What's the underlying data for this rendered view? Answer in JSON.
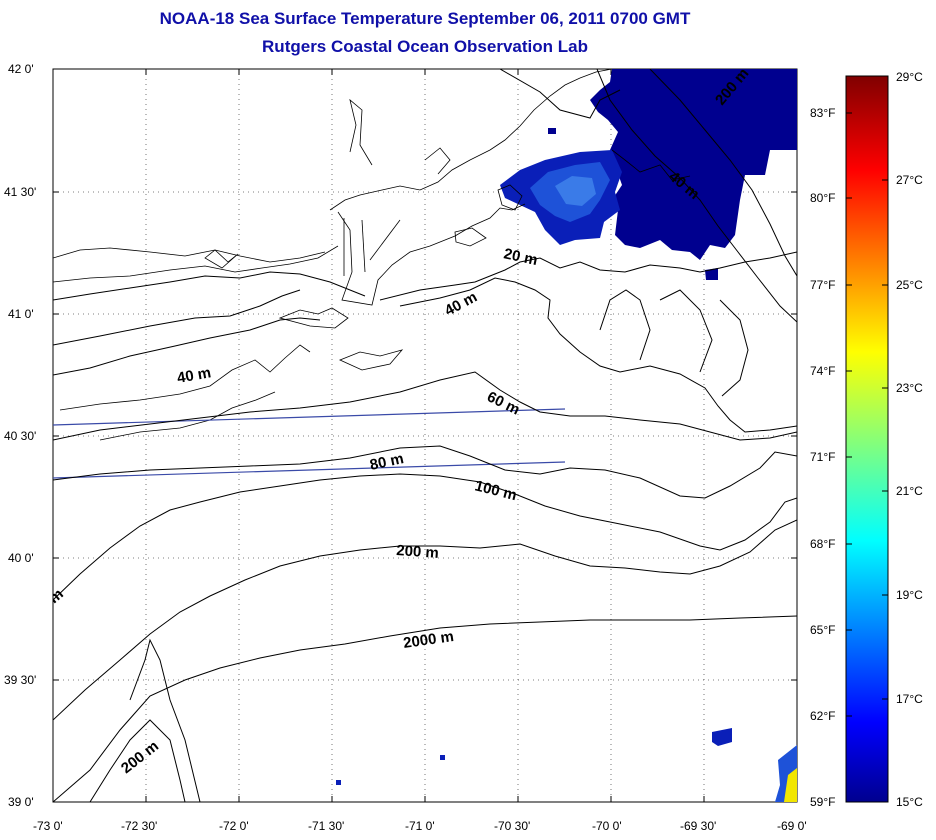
{
  "header": {
    "title_line1": "NOAA-18 Sea Surface Temperature September 06, 2011 0700 GMT",
    "title_line2": "Rutgers Coastal Ocean Observation Lab"
  },
  "map": {
    "lon_ticks": [
      "-73 0'",
      "-72 30'",
      "-72 0'",
      "-71 30'",
      "-71 0'",
      "-70 30'",
      "-70 0'",
      "-69 30'",
      "-69 0'"
    ],
    "lat_ticks": [
      "42 0'",
      "41 30'",
      "41 0'",
      "40 30'",
      "40 0'",
      "39 30'",
      "39 0'"
    ],
    "contour_labels": {
      "m20": "20 m",
      "m40a": "40 m",
      "m40b": "40 m",
      "m60": "60 m",
      "m80": "80 m",
      "m100": "100 m",
      "m200a": "200 m",
      "m200b": "200 m",
      "m2000": "2000 m",
      "m200ne": "200 m",
      "m40ne": "40 m",
      "m_edge": "m"
    },
    "sst_colors": {
      "deep": "#00008f",
      "mid": "#0a1fb8",
      "light": "#1e52d8",
      "lighter": "#3a7be8"
    },
    "grid": "on",
    "grid_style": "dotted"
  },
  "colorbar": {
    "celsius_labels": [
      "29°C",
      "27°C",
      "25°C",
      "23°C",
      "21°C",
      "19°C",
      "17°C",
      "15°C"
    ],
    "fahrenheit_labels": [
      "83°F",
      "80°F",
      "77°F",
      "74°F",
      "71°F",
      "68°F",
      "65°F",
      "62°F",
      "59°F"
    ],
    "colormap": "jet"
  }
}
